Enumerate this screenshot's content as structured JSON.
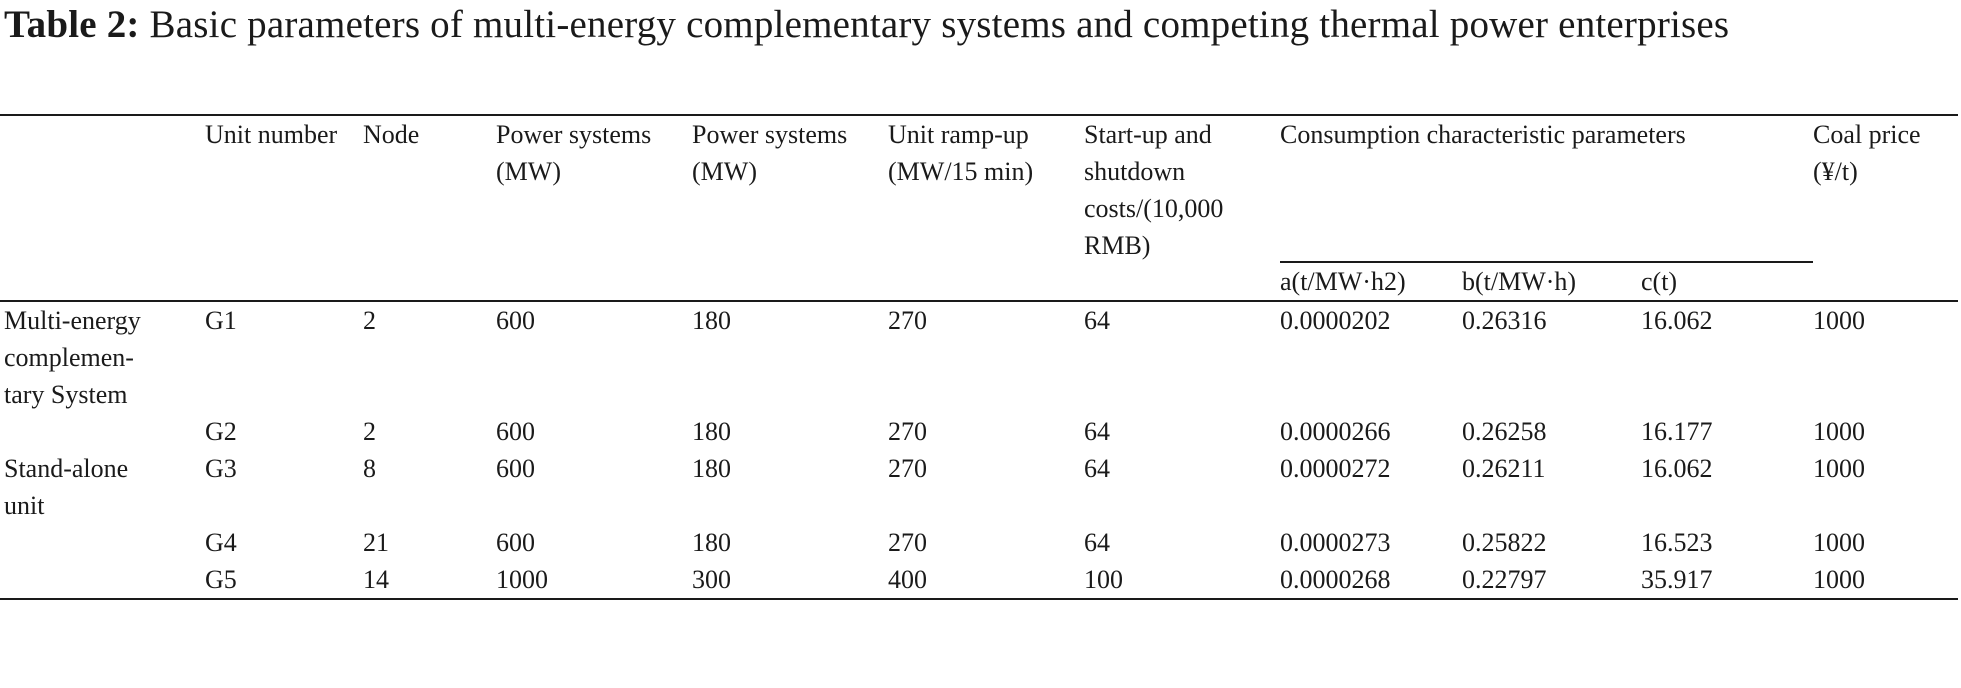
{
  "caption": {
    "label": "Table 2:",
    "text": " Basic parameters of multi-energy complementary systems and competing thermal power enterprises"
  },
  "columns": {
    "unit_number": "Unit number",
    "node": "Node",
    "power_systems_1": "Power systems (MW)",
    "power_systems_2": "Power systems (MW)",
    "ramp": "Unit ramp-up (MW/15 min)",
    "startup": "Start-up and shutdown costs/(10,000 RMB)",
    "consumption": "Consumption characteristic parameters",
    "coal": "Coal price (¥/t)",
    "a": "a(t/MW·h2)",
    "b": "b(t/MW·h)",
    "c": "c(t)"
  },
  "groups": {
    "multi": "Multi-energy complemen- tary System",
    "standalone": "Stand-alone unit"
  },
  "rows": [
    {
      "unit": "G1",
      "node": "2",
      "p1": "600",
      "p2": "180",
      "ramp": "270",
      "startup": "64",
      "a": "0.0000202",
      "b": "0.26316",
      "c": "16.062",
      "coal": "1000"
    },
    {
      "unit": "G2",
      "node": "2",
      "p1": "600",
      "p2": "180",
      "ramp": "270",
      "startup": "64",
      "a": "0.0000266",
      "b": "0.26258",
      "c": "16.177",
      "coal": "1000"
    },
    {
      "unit": "G3",
      "node": "8",
      "p1": "600",
      "p2": "180",
      "ramp": "270",
      "startup": "64",
      "a": "0.0000272",
      "b": "0.26211",
      "c": "16.062",
      "coal": "1000"
    },
    {
      "unit": "G4",
      "node": "21",
      "p1": "600",
      "p2": "180",
      "ramp": "270",
      "startup": "64",
      "a": "0.0000273",
      "b": "0.25822",
      "c": "16.523",
      "coal": "1000"
    },
    {
      "unit": "G5",
      "node": "14",
      "p1": "1000",
      "p2": "300",
      "ramp": "400",
      "startup": "100",
      "a": "0.0000268",
      "b": "0.22797",
      "c": "35.917",
      "coal": "1000"
    }
  ]
}
